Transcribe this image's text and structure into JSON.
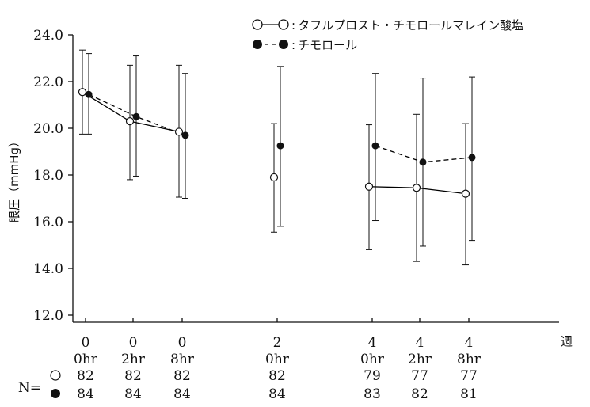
{
  "chart_data": {
    "type": "line",
    "ylabel": "眼圧（mmHg）",
    "x_unit": "週",
    "ylim": [
      12.0,
      24.0
    ],
    "y_ticks": [
      "12.0",
      "14.0",
      "16.0",
      "18.0",
      "20.0",
      "22.0",
      "24.0"
    ],
    "grid": false,
    "legend_position": "top-right",
    "x": [
      {
        "week": "0",
        "time": "0hr"
      },
      {
        "week": "0",
        "time": "2hr"
      },
      {
        "week": "0",
        "time": "8hr"
      },
      {
        "week": "2",
        "time": "0hr"
      },
      {
        "week": "4",
        "time": "0hr"
      },
      {
        "week": "4",
        "time": "2hr"
      },
      {
        "week": "4",
        "time": "8hr"
      }
    ],
    "series": [
      {
        "name": "タフルプロスト・チモロールマレイン酸塩",
        "marker": "open-circle",
        "line_style": "solid",
        "color": "#000000",
        "values": [
          21.55,
          20.3,
          19.85,
          17.9,
          17.5,
          17.45,
          17.2
        ],
        "sd_upper": [
          23.35,
          22.7,
          22.7,
          20.2,
          20.15,
          20.6,
          20.2
        ],
        "sd_lower": [
          19.75,
          17.8,
          17.05,
          15.55,
          14.8,
          14.3,
          14.15
        ],
        "connected_segments": [
          [
            0,
            1,
            2
          ],
          [
            4,
            5,
            6
          ]
        ],
        "n_marker": "○",
        "n": [
          "82",
          "82",
          "82",
          "82",
          "79",
          "77",
          "77"
        ]
      },
      {
        "name": "チモロール",
        "marker": "filled-circle",
        "line_style": "dashed",
        "color": "#000000",
        "values": [
          21.45,
          20.5,
          19.7,
          19.25,
          19.25,
          18.55,
          18.75
        ],
        "sd_upper": [
          23.2,
          23.1,
          22.35,
          22.65,
          22.35,
          22.15,
          22.2
        ],
        "sd_lower": [
          19.75,
          17.95,
          17.0,
          15.8,
          16.05,
          14.95,
          15.2
        ],
        "connected_segments": [
          [
            0,
            1,
            2
          ],
          [
            4,
            5,
            6
          ]
        ],
        "n_marker": "●",
        "n": [
          "84",
          "84",
          "84",
          "84",
          "83",
          "82",
          "81"
        ]
      }
    ],
    "n_label": "N="
  }
}
